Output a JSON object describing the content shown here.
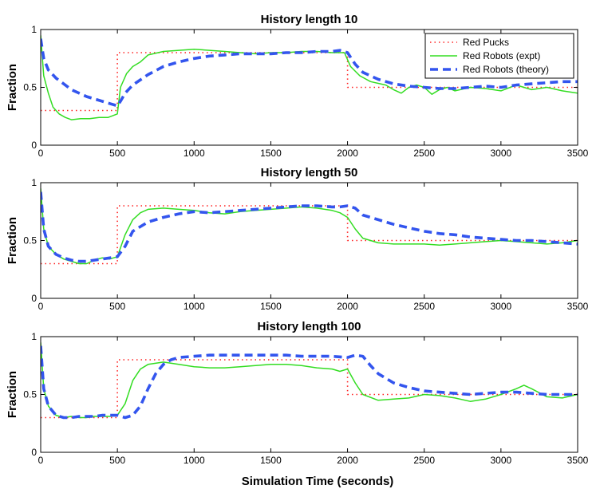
{
  "figure": {
    "xlabel": "Simulation Time (seconds)",
    "legend_location": "top-right",
    "legend": [
      "Red Pucks",
      "Red Robots (expt)",
      "Red Robots (theory)"
    ],
    "colors": {
      "pucks": "#ff2020",
      "expt": "#33dd22",
      "theory": "#3355ee"
    }
  },
  "chart_data": [
    {
      "type": "line",
      "title": "History length 10",
      "xlabel": "Simulation Time (seconds)",
      "ylabel": "Fraction",
      "xlim": [
        0,
        3500
      ],
      "ylim": [
        0,
        1
      ],
      "xticks": [
        0,
        500,
        1000,
        1500,
        2000,
        2500,
        3000,
        3500
      ],
      "yticks": [
        0,
        0.5,
        1
      ],
      "ytick_labels": [
        "0",
        "0.5",
        "1"
      ],
      "legend": [
        "Red Pucks",
        "Red Robots (expt)",
        "Red Robots (theory)"
      ],
      "series": [
        {
          "name": "Red Pucks",
          "style": "dotted",
          "x": [
            0,
            500,
            500,
            2000,
            2000,
            3500
          ],
          "y": [
            0.3,
            0.3,
            0.8,
            0.8,
            0.5,
            0.5
          ]
        },
        {
          "name": "Red Robots (expt)",
          "style": "solid",
          "x": [
            0,
            20,
            50,
            80,
            120,
            160,
            200,
            260,
            320,
            380,
            440,
            500,
            520,
            560,
            600,
            650,
            700,
            800,
            900,
            1000,
            1100,
            1200,
            1300,
            1400,
            1500,
            1600,
            1700,
            1800,
            1900,
            1980,
            2020,
            2080,
            2150,
            2250,
            2300,
            2350,
            2400,
            2450,
            2500,
            2550,
            2600,
            2650,
            2700,
            2800,
            2900,
            3000,
            3100,
            3200,
            3300,
            3400,
            3500
          ],
          "y": [
            0.95,
            0.6,
            0.45,
            0.33,
            0.27,
            0.24,
            0.22,
            0.23,
            0.23,
            0.24,
            0.24,
            0.27,
            0.5,
            0.62,
            0.68,
            0.72,
            0.78,
            0.81,
            0.82,
            0.83,
            0.82,
            0.81,
            0.8,
            0.79,
            0.8,
            0.8,
            0.81,
            0.81,
            0.8,
            0.8,
            0.68,
            0.6,
            0.55,
            0.52,
            0.48,
            0.45,
            0.5,
            0.52,
            0.5,
            0.44,
            0.48,
            0.5,
            0.47,
            0.5,
            0.49,
            0.47,
            0.52,
            0.48,
            0.5,
            0.47,
            0.45
          ]
        },
        {
          "name": "Red Robots (theory)",
          "style": "dashed",
          "x": [
            0,
            20,
            50,
            100,
            150,
            200,
            250,
            300,
            350,
            400,
            450,
            500,
            520,
            550,
            600,
            700,
            800,
            900,
            1000,
            1100,
            1200,
            1300,
            1400,
            1500,
            1600,
            1700,
            1800,
            1900,
            1950,
            2000,
            2050,
            2100,
            2200,
            2300,
            2400,
            2500,
            2600,
            2700,
            2800,
            2900,
            3000,
            3100,
            3200,
            3300,
            3400,
            3500
          ],
          "y": [
            0.92,
            0.75,
            0.65,
            0.58,
            0.53,
            0.48,
            0.45,
            0.42,
            0.4,
            0.38,
            0.36,
            0.34,
            0.38,
            0.45,
            0.52,
            0.61,
            0.68,
            0.72,
            0.75,
            0.77,
            0.78,
            0.79,
            0.79,
            0.79,
            0.8,
            0.8,
            0.81,
            0.81,
            0.82,
            0.8,
            0.7,
            0.63,
            0.57,
            0.53,
            0.51,
            0.5,
            0.49,
            0.49,
            0.5,
            0.51,
            0.5,
            0.52,
            0.53,
            0.54,
            0.55,
            0.55
          ]
        }
      ]
    },
    {
      "type": "line",
      "title": "History length 50",
      "xlabel": "Simulation Time (seconds)",
      "ylabel": "Fraction",
      "xlim": [
        0,
        3500
      ],
      "ylim": [
        0,
        1
      ],
      "xticks": [
        0,
        500,
        1000,
        1500,
        2000,
        2500,
        3000,
        3500
      ],
      "yticks": [
        0,
        0.5,
        1
      ],
      "ytick_labels": [
        "0",
        "0.5",
        "1"
      ],
      "series": [
        {
          "name": "Red Pucks",
          "style": "dotted",
          "x": [
            0,
            500,
            500,
            2000,
            2000,
            3500
          ],
          "y": [
            0.3,
            0.3,
            0.8,
            0.8,
            0.5,
            0.5
          ]
        },
        {
          "name": "Red Robots (expt)",
          "style": "solid",
          "x": [
            0,
            20,
            50,
            100,
            150,
            200,
            250,
            300,
            350,
            400,
            450,
            500,
            550,
            600,
            650,
            700,
            800,
            900,
            1000,
            1100,
            1200,
            1300,
            1400,
            1500,
            1600,
            1700,
            1800,
            1900,
            1950,
            2000,
            2050,
            2100,
            2200,
            2300,
            2400,
            2500,
            2600,
            2700,
            2800,
            2900,
            3000,
            3100,
            3200,
            3300,
            3400,
            3500
          ],
          "y": [
            0.95,
            0.6,
            0.45,
            0.38,
            0.34,
            0.32,
            0.3,
            0.3,
            0.33,
            0.35,
            0.34,
            0.36,
            0.55,
            0.68,
            0.74,
            0.77,
            0.78,
            0.77,
            0.76,
            0.74,
            0.73,
            0.75,
            0.76,
            0.77,
            0.78,
            0.79,
            0.78,
            0.76,
            0.74,
            0.7,
            0.6,
            0.52,
            0.48,
            0.47,
            0.47,
            0.47,
            0.46,
            0.47,
            0.48,
            0.49,
            0.5,
            0.49,
            0.48,
            0.47,
            0.48,
            0.5
          ]
        },
        {
          "name": "Red Robots (theory)",
          "style": "dashed",
          "x": [
            0,
            20,
            50,
            100,
            150,
            200,
            250,
            300,
            350,
            400,
            450,
            500,
            550,
            600,
            700,
            800,
            900,
            1000,
            1100,
            1200,
            1300,
            1400,
            1500,
            1600,
            1700,
            1800,
            1900,
            1950,
            2000,
            2050,
            2100,
            2200,
            2300,
            2400,
            2500,
            2600,
            2700,
            2800,
            2900,
            3000,
            3100,
            3200,
            3300,
            3400,
            3500
          ],
          "y": [
            0.92,
            0.6,
            0.45,
            0.38,
            0.35,
            0.33,
            0.32,
            0.32,
            0.33,
            0.34,
            0.35,
            0.36,
            0.45,
            0.58,
            0.66,
            0.7,
            0.73,
            0.75,
            0.74,
            0.75,
            0.76,
            0.77,
            0.78,
            0.79,
            0.8,
            0.8,
            0.79,
            0.79,
            0.8,
            0.78,
            0.72,
            0.68,
            0.64,
            0.61,
            0.58,
            0.56,
            0.55,
            0.53,
            0.52,
            0.51,
            0.5,
            0.5,
            0.49,
            0.48,
            0.47
          ]
        }
      ]
    },
    {
      "type": "line",
      "title": "History length 100",
      "xlabel": "Simulation Time (seconds)",
      "ylabel": "Fraction",
      "xlim": [
        0,
        3500
      ],
      "ylim": [
        0,
        1
      ],
      "xticks": [
        0,
        500,
        1000,
        1500,
        2000,
        2500,
        3000,
        3500
      ],
      "yticks": [
        0,
        0.5,
        1
      ],
      "ytick_labels": [
        "0",
        "0.5",
        "1"
      ],
      "series": [
        {
          "name": "Red Pucks",
          "style": "dotted",
          "x": [
            0,
            500,
            500,
            2000,
            2000,
            3500
          ],
          "y": [
            0.3,
            0.3,
            0.8,
            0.8,
            0.5,
            0.5
          ]
        },
        {
          "name": "Red Robots (expt)",
          "style": "solid",
          "x": [
            0,
            20,
            50,
            100,
            150,
            200,
            250,
            300,
            350,
            400,
            450,
            500,
            550,
            600,
            650,
            700,
            800,
            900,
            1000,
            1100,
            1200,
            1300,
            1400,
            1500,
            1600,
            1700,
            1800,
            1900,
            1950,
            2000,
            2050,
            2100,
            2200,
            2300,
            2400,
            2500,
            2600,
            2700,
            2800,
            2900,
            3000,
            3100,
            3150,
            3200,
            3300,
            3400,
            3500
          ],
          "y": [
            0.95,
            0.55,
            0.4,
            0.32,
            0.3,
            0.31,
            0.3,
            0.3,
            0.31,
            0.31,
            0.31,
            0.32,
            0.42,
            0.62,
            0.72,
            0.76,
            0.78,
            0.76,
            0.74,
            0.73,
            0.73,
            0.74,
            0.75,
            0.76,
            0.76,
            0.75,
            0.73,
            0.72,
            0.7,
            0.72,
            0.6,
            0.5,
            0.45,
            0.46,
            0.47,
            0.5,
            0.49,
            0.47,
            0.44,
            0.46,
            0.5,
            0.55,
            0.58,
            0.55,
            0.48,
            0.47,
            0.5
          ]
        },
        {
          "name": "Red Robots (theory)",
          "style": "dashed",
          "x": [
            0,
            20,
            50,
            100,
            150,
            200,
            250,
            300,
            350,
            400,
            450,
            500,
            550,
            600,
            650,
            700,
            750,
            800,
            850,
            900,
            1000,
            1100,
            1200,
            1300,
            1400,
            1500,
            1600,
            1700,
            1800,
            1900,
            2000,
            2050,
            2100,
            2150,
            2200,
            2300,
            2400,
            2500,
            2600,
            2700,
            2800,
            2900,
            3000,
            3100,
            3200,
            3300,
            3400,
            3500
          ],
          "y": [
            0.92,
            0.55,
            0.4,
            0.32,
            0.3,
            0.3,
            0.31,
            0.31,
            0.31,
            0.32,
            0.32,
            0.32,
            0.3,
            0.32,
            0.4,
            0.55,
            0.68,
            0.76,
            0.8,
            0.82,
            0.83,
            0.84,
            0.84,
            0.84,
            0.84,
            0.84,
            0.84,
            0.83,
            0.83,
            0.83,
            0.82,
            0.84,
            0.83,
            0.75,
            0.68,
            0.6,
            0.56,
            0.53,
            0.52,
            0.51,
            0.5,
            0.51,
            0.52,
            0.52,
            0.51,
            0.5,
            0.5,
            0.5
          ]
        }
      ]
    }
  ]
}
